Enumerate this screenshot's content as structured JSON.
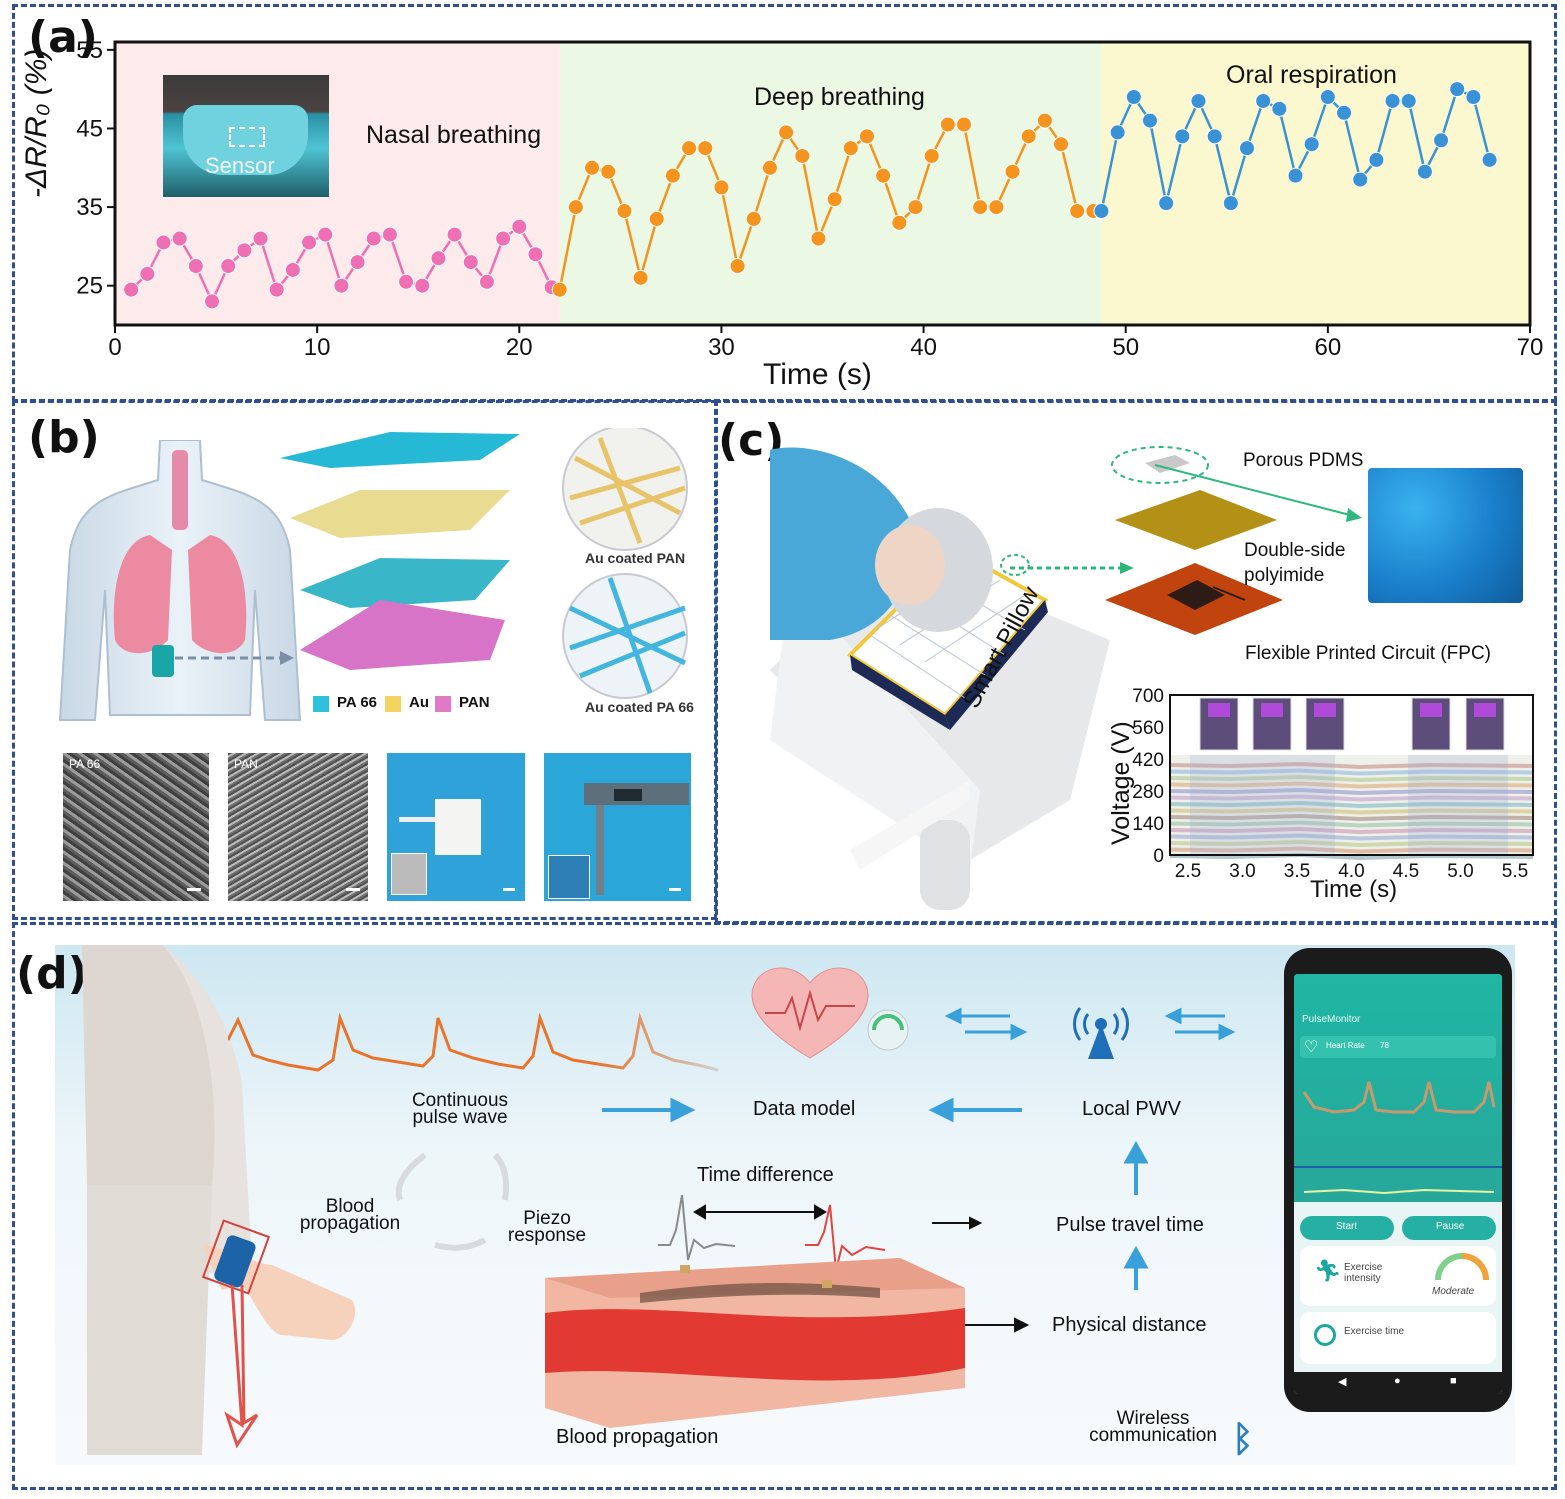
{
  "panel_labels": {
    "a": "(a)",
    "b": "(b)",
    "c": "(c)",
    "d": "(d)"
  },
  "panel_a": {
    "inset_label": "Sensor",
    "region_labels": [
      "Nasal breathing",
      "Deep breathing",
      "Oral respiration"
    ],
    "region_colors": [
      "#fdeaea",
      "#eaf8e4",
      "#fbf8cf"
    ],
    "series_colors": [
      "#ef6fb4",
      "#f4931e",
      "#3a92d6"
    ]
  },
  "chart_data": {
    "type": "line",
    "xlabel": "Time (s)",
    "ylabel": "-ΔR/R₀ (%)",
    "xlim": [
      0,
      70
    ],
    "ylim": [
      20,
      56
    ],
    "xticks": [
      0,
      10,
      20,
      30,
      40,
      50,
      60,
      70
    ],
    "yticks": [
      25,
      35,
      45,
      55
    ],
    "series": [
      {
        "name": "Nasal breathing",
        "x": [
          0.8,
          1.6,
          2.4,
          3.2,
          4.0,
          4.8,
          5.6,
          6.4,
          7.2,
          8.0,
          8.8,
          9.6,
          10.4,
          11.2,
          12.0,
          12.8,
          13.6,
          14.4,
          15.2,
          16.0,
          16.8,
          17.6,
          18.4,
          19.2,
          20.0,
          20.8,
          21.6
        ],
        "y": [
          24.5,
          26.5,
          30.5,
          31.0,
          27.5,
          23.0,
          27.5,
          29.5,
          31.0,
          24.5,
          27.0,
          30.5,
          31.5,
          25.0,
          28.0,
          31.0,
          31.5,
          25.5,
          25.0,
          28.5,
          31.5,
          28.0,
          25.5,
          31.0,
          32.5,
          29.0,
          24.8
        ]
      },
      {
        "name": "Deep breathing",
        "x": [
          22.0,
          22.8,
          23.6,
          24.4,
          25.2,
          26.0,
          26.8,
          27.6,
          28.4,
          29.2,
          30.0,
          30.8,
          31.6,
          32.4,
          33.2,
          34.0,
          34.8,
          35.6,
          36.4,
          37.2,
          38.0,
          38.8,
          39.6,
          40.4,
          41.2,
          42.0,
          42.8,
          43.6,
          44.4,
          45.2,
          46.0,
          46.8,
          47.6,
          48.4
        ],
        "y": [
          24.5,
          35.0,
          40.0,
          39.5,
          34.5,
          26.0,
          33.5,
          39.0,
          42.5,
          42.5,
          37.5,
          27.5,
          33.5,
          40.0,
          44.5,
          41.5,
          31.0,
          36.0,
          42.5,
          44.0,
          39.0,
          33.0,
          35.0,
          41.5,
          45.5,
          45.5,
          35.0,
          35.0,
          39.5,
          44.0,
          46.0,
          43.0,
          34.5,
          34.5
        ]
      },
      {
        "name": "Oral respiration",
        "x": [
          48.8,
          49.6,
          50.4,
          51.2,
          52.0,
          52.8,
          53.6,
          54.4,
          55.2,
          56.0,
          56.8,
          57.6,
          58.4,
          59.2,
          60.0,
          60.8,
          61.6,
          62.4,
          63.2,
          64.0,
          64.8,
          65.6,
          66.4,
          67.2,
          68.0
        ],
        "y": [
          34.5,
          44.5,
          49.0,
          46.0,
          35.5,
          44.0,
          48.5,
          44.0,
          35.5,
          42.5,
          48.5,
          47.5,
          39.0,
          43.0,
          49.0,
          47.0,
          38.5,
          41.0,
          48.5,
          48.5,
          39.5,
          43.5,
          50.0,
          49.0,
          41.0
        ]
      }
    ]
  },
  "panel_b": {
    "legend": [
      "PA 66",
      "Au",
      "PAN"
    ],
    "legend_colors": [
      "#2fc1dc",
      "#f2d462",
      "#e07ac4"
    ],
    "callout_top": "Au coated PAN",
    "callout_bottom": "Au coated PA 66",
    "sem_labels": [
      "PA 66",
      "PAN"
    ]
  },
  "panel_c": {
    "layer_labels": [
      "Porous PDMS",
      "Double-side polyimide",
      "Flexible Printed Circuit (FPC)"
    ],
    "pillow_label": "Smart Pillow",
    "ylabel": "Voltage (V)",
    "xlabel": "Time (s)",
    "yticks": [
      "0",
      "140",
      "280",
      "420",
      "560",
      "700"
    ],
    "xticks": [
      "2.5",
      "3.0",
      "3.5",
      "4.0",
      "4.5",
      "5.0",
      "5.5"
    ]
  },
  "panel_d": {
    "labels": {
      "continuous_pulse_wave": "Continuous pulse wave",
      "data_model": "Data model",
      "local_pwv": "Local PWV",
      "blood_propagation_cycle": "Blood propagation",
      "piezo_response": "Piezo response",
      "time_difference": "Time difference",
      "pulse_travel_time": "Pulse travel time",
      "physical_distance": "Physical distance",
      "blood_propagation": "Blood propagation",
      "wireless_communication": "Wireless communication"
    },
    "phone": {
      "app_title": "PulseMonitor",
      "heart_rate_label": "Heart Rate",
      "heart_rate_value": "78",
      "start_button": "Start",
      "pause_button": "Pause",
      "exercise_intensity_label": "Exercise intensity",
      "intensity_value": "Moderate",
      "exercise_time_label": "Exercise time"
    },
    "accent_color": "#2a9fd8"
  }
}
